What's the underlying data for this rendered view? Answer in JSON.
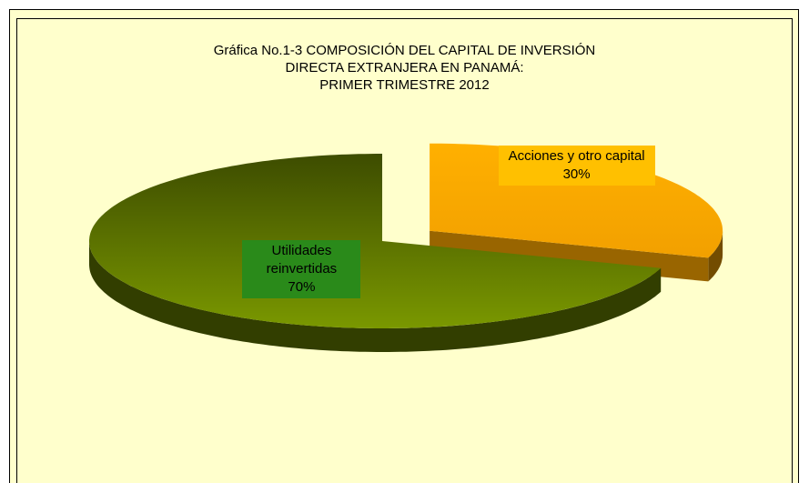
{
  "chart_data": {
    "type": "pie",
    "title": "Gráfica No.1-3 COMPOSICIÓN DEL CAPITAL DE INVERSIÓN\nDIRECTA EXTRANJERA EN PANAMÁ:\nPRIMER TRIMESTRE 2012",
    "categories": [
      "Acciones y otro capital",
      "Utilidades reinvertidas"
    ],
    "values": [
      30,
      70
    ],
    "value_labels": [
      "30%",
      "70%"
    ],
    "colors": [
      "#ffa800",
      "#6f8a00"
    ],
    "label_colors": [
      "#ffc000",
      "#2a8a1a"
    ],
    "explode": [
      0.2,
      0
    ],
    "three_d": true
  }
}
